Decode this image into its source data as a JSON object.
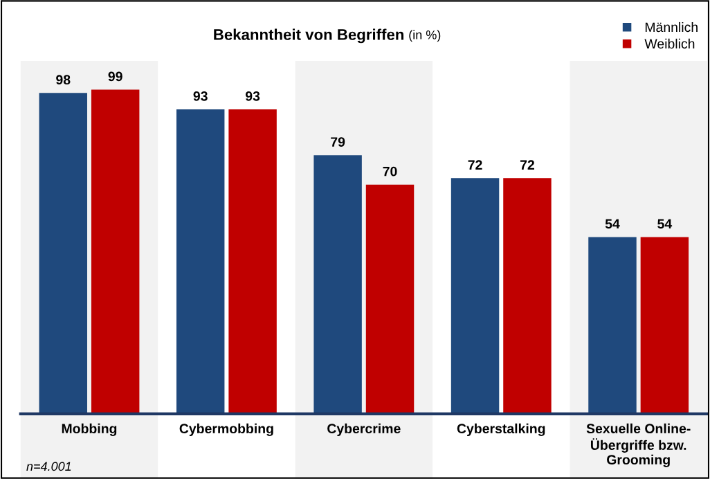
{
  "chart_data": {
    "type": "bar",
    "title": "Bekanntheit von Begriffen",
    "subtitle": "(in %)",
    "categories": [
      "Mobbing",
      "Cybermobbing",
      "Cybercrime",
      "Cyberstalking",
      "Sexuelle Online-\nÜbergriffe bzw.\nGrooming"
    ],
    "series": [
      {
        "name": "Männlich",
        "color": "#1f497d",
        "values": [
          98,
          93,
          79,
          72,
          54
        ]
      },
      {
        "name": "Weiblich",
        "color": "#c00000",
        "values": [
          99,
          93,
          70,
          72,
          54
        ]
      }
    ],
    "tick_labels": "x",
    "data_labels": true,
    "grid": false,
    "legend": "top right",
    "annotations": [
      "n=4.001"
    ]
  }
}
